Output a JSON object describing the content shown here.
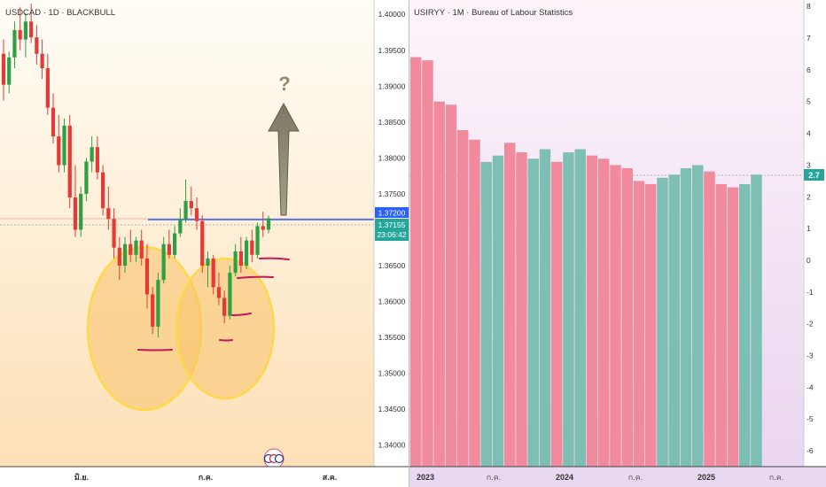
{
  "left_panel": {
    "title": "USDCAD · 1D · BLACKBULL",
    "price_axis": [
      "1.40000",
      "1.39500",
      "1.39000",
      "1.38500",
      "1.38000",
      "1.37500",
      "1.37000",
      "1.36500",
      "1.36000",
      "1.35500",
      "1.35000",
      "1.34500",
      "1.34000"
    ],
    "time_axis": [
      "มิ.ย.",
      "ก.ค.",
      "ส.ค."
    ],
    "price_badge": "1.37200",
    "last_price_badge": "1.37155",
    "countdown": "23:06:42",
    "annotation": "?",
    "colors": {
      "up": "#2ea043",
      "down": "#e53935",
      "level_line": "#2962ff",
      "arrow": "#8f8a6e",
      "highlight": "#f2b84b",
      "underline": "#c2185b"
    }
  },
  "right_panel": {
    "title": "USIRYY · 1M · Bureau of Labour Statistics",
    "value_axis": [
      "8",
      "7",
      "6",
      "5",
      "4",
      "3",
      "2",
      "1",
      "0",
      "-1",
      "-2",
      "-3",
      "-4",
      "-5",
      "-6"
    ],
    "time_axis": [
      "2023",
      "ก.ค.",
      "2024",
      "ก.ค.",
      "2025",
      "ก.ค."
    ],
    "last_value_badge": "2.7",
    "colors": {
      "up": "#7dbfb2",
      "down": "#f08a9c",
      "badge": "#26a69a"
    }
  },
  "chart_data": [
    {
      "type": "candlestick",
      "title": "USDCAD · 1D · BLACKBULL",
      "ylim": [
        1.337,
        1.402
      ],
      "x_ticks": [
        "มิ.ย.",
        "ก.ค.",
        "ส.ค."
      ],
      "candles": [
        [
          1.3945,
          1.3965,
          1.388,
          1.3902
        ],
        [
          1.3902,
          1.3948,
          1.389,
          1.394
        ],
        [
          1.394,
          1.399,
          1.3925,
          1.3978
        ],
        [
          1.3978,
          1.401,
          1.395,
          1.3965
        ],
        [
          1.3965,
          1.4002,
          1.394,
          1.399
        ],
        [
          1.399,
          1.4015,
          1.396,
          1.3968
        ],
        [
          1.3968,
          1.3985,
          1.393,
          1.3945
        ],
        [
          1.3945,
          1.3965,
          1.391,
          1.3925
        ],
        [
          1.3925,
          1.3945,
          1.386,
          1.387
        ],
        [
          1.387,
          1.389,
          1.382,
          1.383
        ],
        [
          1.383,
          1.386,
          1.378,
          1.379
        ],
        [
          1.379,
          1.3855,
          1.378,
          1.3845
        ],
        [
          1.3845,
          1.386,
          1.373,
          1.3745
        ],
        [
          1.3745,
          1.379,
          1.369,
          1.37
        ],
        [
          1.37,
          1.376,
          1.369,
          1.375
        ],
        [
          1.375,
          1.38,
          1.374,
          1.3795
        ],
        [
          1.3795,
          1.383,
          1.378,
          1.3815
        ],
        [
          1.3815,
          1.383,
          1.377,
          1.378
        ],
        [
          1.378,
          1.379,
          1.372,
          1.373
        ],
        [
          1.373,
          1.376,
          1.37,
          1.3715
        ],
        [
          1.3715,
          1.373,
          1.366,
          1.3675
        ],
        [
          1.3675,
          1.369,
          1.363,
          1.365
        ],
        [
          1.365,
          1.369,
          1.364,
          1.368
        ],
        [
          1.368,
          1.37,
          1.3655,
          1.3665
        ],
        [
          1.3665,
          1.369,
          1.3655,
          1.3685
        ],
        [
          1.3685,
          1.37,
          1.365,
          1.366
        ],
        [
          1.366,
          1.368,
          1.359,
          1.361
        ],
        [
          1.361,
          1.362,
          1.3555,
          1.3565
        ],
        [
          1.3565,
          1.364,
          1.355,
          1.363
        ],
        [
          1.363,
          1.369,
          1.3625,
          1.368
        ],
        [
          1.368,
          1.37,
          1.366,
          1.3665
        ],
        [
          1.3665,
          1.3705,
          1.366,
          1.3695
        ],
        [
          1.3695,
          1.373,
          1.369,
          1.3715
        ],
        [
          1.3715,
          1.377,
          1.371,
          1.374
        ],
        [
          1.374,
          1.376,
          1.372,
          1.373
        ],
        [
          1.373,
          1.3745,
          1.37,
          1.3712
        ],
        [
          1.3712,
          1.372,
          1.364,
          1.365
        ],
        [
          1.365,
          1.367,
          1.362,
          1.366
        ],
        [
          1.366,
          1.3665,
          1.361,
          1.362
        ],
        [
          1.362,
          1.364,
          1.3595,
          1.3605
        ],
        [
          1.3605,
          1.3615,
          1.357,
          1.358
        ],
        [
          1.358,
          1.365,
          1.3575,
          1.364
        ],
        [
          1.364,
          1.368,
          1.3635,
          1.367
        ],
        [
          1.367,
          1.369,
          1.364,
          1.365
        ],
        [
          1.365,
          1.369,
          1.3645,
          1.3685
        ],
        [
          1.3685,
          1.37,
          1.3655,
          1.3665
        ],
        [
          1.3665,
          1.371,
          1.366,
          1.3705
        ],
        [
          1.3705,
          1.3725,
          1.369,
          1.37
        ],
        [
          1.37,
          1.372,
          1.3695,
          1.3716
        ]
      ]
    },
    {
      "type": "bar",
      "title": "USIRYY · 1M · Bureau of Labour Statistics",
      "ylim": [
        -6.5,
        8.2
      ],
      "x_ticks": [
        "2023",
        "ก.ค.",
        "2024",
        "ก.ค.",
        "2025",
        "ก.ค."
      ],
      "values": [
        6.4,
        6.3,
        5.0,
        4.9,
        4.1,
        3.8,
        3.1,
        3.3,
        3.7,
        3.4,
        3.2,
        3.5,
        3.1,
        3.4,
        3.5,
        3.3,
        3.2,
        3.0,
        2.9,
        2.5,
        2.4,
        2.6,
        2.7,
        2.9,
        3.0,
        2.8,
        2.4,
        2.3,
        2.4,
        2.7
      ],
      "up": [
        0,
        0,
        0,
        0,
        0,
        0,
        1,
        1,
        0,
        0,
        1,
        1,
        0,
        1,
        1,
        0,
        0,
        0,
        0,
        0,
        0,
        1,
        1,
        1,
        1,
        0,
        0,
        0,
        1,
        1
      ],
      "last_value": 2.7
    }
  ]
}
